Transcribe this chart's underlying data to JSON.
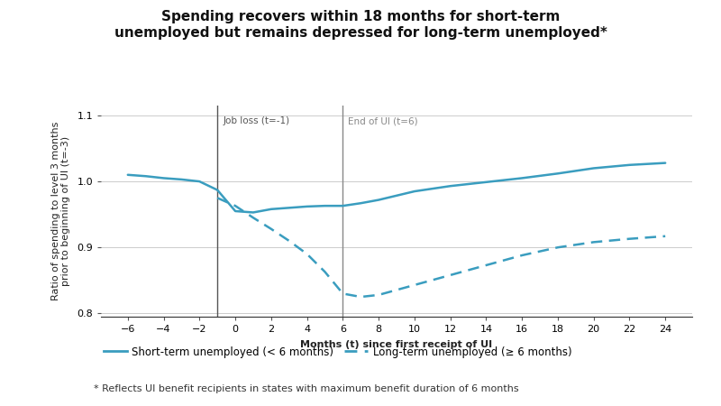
{
  "title": "Spending recovers within 18 months for short-term\nunemployed but remains depressed for long-term unemployed*",
  "xlabel": "Months (t) since first receipt of UI",
  "ylabel": "Ratio of spending to level 3 months\nprior to beginning of UI (t=-3)",
  "ylim": [
    0.795,
    1.115
  ],
  "yticks": [
    0.8,
    0.9,
    1.0,
    1.1
  ],
  "xticks": [
    -6,
    -4,
    -2,
    0,
    2,
    4,
    6,
    8,
    10,
    12,
    14,
    16,
    18,
    20,
    22,
    24
  ],
  "xlim": [
    -7.5,
    25.5
  ],
  "vline1_x": -1,
  "vline2_x": 6,
  "vline1_label": "Job loss (t=-1)",
  "vline2_label": "End of UI (t=6)",
  "short_term_x": [
    -6,
    -5,
    -4,
    -3,
    -2,
    -1,
    0,
    1,
    2,
    3,
    4,
    5,
    6,
    7,
    8,
    10,
    12,
    14,
    16,
    18,
    20,
    22,
    24
  ],
  "short_term_y": [
    1.01,
    1.008,
    1.005,
    1.003,
    1.0,
    0.987,
    0.955,
    0.953,
    0.958,
    0.96,
    0.962,
    0.963,
    0.963,
    0.967,
    0.972,
    0.985,
    0.993,
    0.999,
    1.005,
    1.012,
    1.02,
    1.025,
    1.028
  ],
  "long_term_x": [
    -1,
    0,
    1,
    2,
    3,
    4,
    5,
    6,
    7,
    8,
    10,
    12,
    14,
    16,
    18,
    20,
    22,
    24
  ],
  "long_term_y": [
    0.975,
    0.963,
    0.945,
    0.928,
    0.91,
    0.89,
    0.863,
    0.83,
    0.825,
    0.828,
    0.843,
    0.858,
    0.873,
    0.888,
    0.9,
    0.908,
    0.913,
    0.917
  ],
  "short_label": "Short-term unemployed (< 6 months)",
  "long_label": "Long-term unemployed (≥ 6 months)",
  "footnote": "* Reflects UI benefit recipients in states with maximum benefit duration of 6 months",
  "line_color": "#3a9dbf",
  "vline1_color": "#555555",
  "vline2_color": "#888888",
  "bg_color": "#ffffff",
  "grid_color": "#cccccc",
  "title_fontsize": 11,
  "label_fontsize": 8,
  "tick_fontsize": 8,
  "footnote_fontsize": 8
}
